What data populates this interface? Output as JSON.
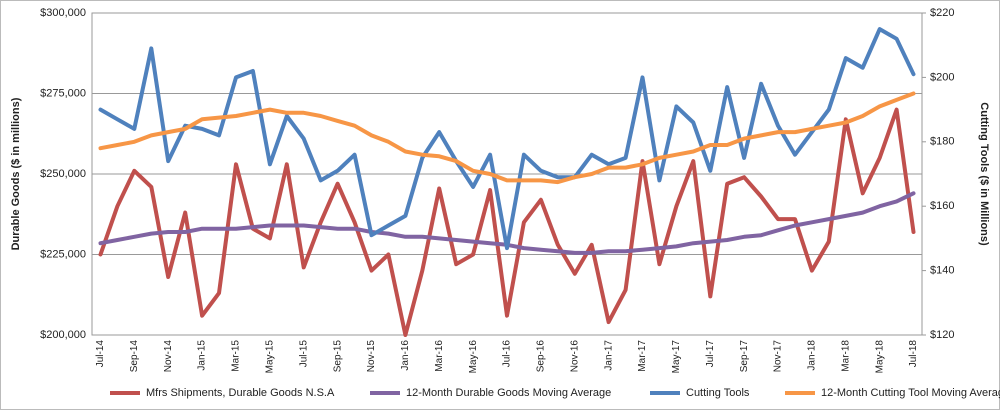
{
  "chart_data": {
    "type": "line",
    "categories": [
      "Jul-14",
      null,
      "Sep-14",
      null,
      "Nov-14",
      null,
      "Jan-15",
      null,
      "Mar-15",
      null,
      "May-15",
      null,
      "Jul-15",
      null,
      "Sep-15",
      null,
      "Nov-15",
      null,
      "Jan-16",
      null,
      "Mar-16",
      null,
      "May-16",
      null,
      "Jul-16",
      null,
      "Sep-16",
      null,
      "Nov-16",
      null,
      "Jan-17",
      null,
      "Mar-17",
      null,
      "May-17",
      null,
      "Jul-17",
      null,
      "Sep-17",
      null,
      "Nov-17",
      null,
      "Jan-18",
      null,
      "Mar-18",
      null,
      "May-18",
      null,
      "Jul-18"
    ],
    "ylabel": "Durable Goods ($ in millions)",
    "y2label": "Cutting Tools ($ in Millions)",
    "ylim": [
      200000,
      300000
    ],
    "yticks": [
      {
        "value": 200000,
        "label": "$200,000"
      },
      {
        "value": 225000,
        "label": "$225,000"
      },
      {
        "value": 250000,
        "label": "$250,000"
      },
      {
        "value": 275000,
        "label": "$275,000"
      },
      {
        "value": 300000,
        "label": "$300,000"
      }
    ],
    "y2lim": [
      120,
      220
    ],
    "y2ticks": [
      {
        "value": 120,
        "label": "$120"
      },
      {
        "value": 140,
        "label": "$140"
      },
      {
        "value": 160,
        "label": "$160"
      },
      {
        "value": 180,
        "label": "$180"
      },
      {
        "value": 200,
        "label": "$200"
      },
      {
        "value": 220,
        "label": "$220"
      }
    ],
    "grid": true,
    "legend": "bottom",
    "series": [
      {
        "name": "Mfrs Shipments, Durable Goods N.S.A",
        "color": "#c0504d",
        "axis": "y",
        "values": [
          225000,
          240000,
          251000,
          246000,
          218000,
          238000,
          206000,
          213000,
          253000,
          233000,
          230000,
          253000,
          221000,
          235000,
          247000,
          235000,
          220000,
          225000,
          200000,
          220000,
          245500,
          222000,
          225000,
          245000,
          206000,
          235000,
          242000,
          228000,
          219000,
          228000,
          204000,
          214000,
          254000,
          222000,
          240000,
          254000,
          212000,
          247000,
          249000,
          243000,
          236000,
          236000,
          220000,
          229000,
          267000,
          244000,
          255000,
          270000,
          232000
        ]
      },
      {
        "name": "12-Month Durable Goods Moving Average",
        "color": "#8064a2",
        "axis": "y",
        "values": [
          228500,
          229500,
          230500,
          231500,
          232000,
          232000,
          233000,
          233000,
          233000,
          233500,
          234000,
          234000,
          234000,
          233500,
          233000,
          233000,
          232000,
          231500,
          230500,
          230500,
          230000,
          229500,
          229000,
          228500,
          228000,
          227000,
          226500,
          226000,
          225500,
          225500,
          226000,
          226000,
          226500,
          227000,
          227500,
          228500,
          229000,
          229500,
          230500,
          231000,
          232500,
          234000,
          235000,
          236000,
          237000,
          238000,
          240000,
          241500,
          244000
        ]
      },
      {
        "name": "Cutting Tools",
        "color": "#4f81bd",
        "axis": "y2",
        "values": [
          190,
          187,
          184,
          209,
          174,
          185,
          184,
          182,
          200,
          202,
          173,
          188,
          181,
          168,
          171,
          176,
          151,
          154,
          157,
          175,
          183,
          174,
          166,
          176,
          147,
          176,
          171,
          169,
          169,
          176,
          173,
          175,
          200,
          168,
          191,
          186,
          171,
          197,
          175,
          198,
          185,
          176,
          183,
          190,
          206,
          203,
          215,
          212,
          201
        ]
      },
      {
        "name": "12-Month Cutting Tool Moving Average",
        "color": "#f79646",
        "axis": "y2",
        "values": [
          178,
          179,
          180,
          182,
          183,
          184,
          187,
          187.5,
          188,
          189,
          190,
          189,
          189,
          188,
          186.5,
          185,
          182,
          180,
          177,
          176,
          175.5,
          174,
          171,
          170,
          168,
          168,
          168,
          167.5,
          169,
          170,
          172,
          172,
          173,
          175,
          176,
          177,
          179,
          179,
          181,
          182,
          183,
          183,
          184,
          185,
          186,
          188,
          191,
          193,
          195
        ]
      }
    ]
  }
}
